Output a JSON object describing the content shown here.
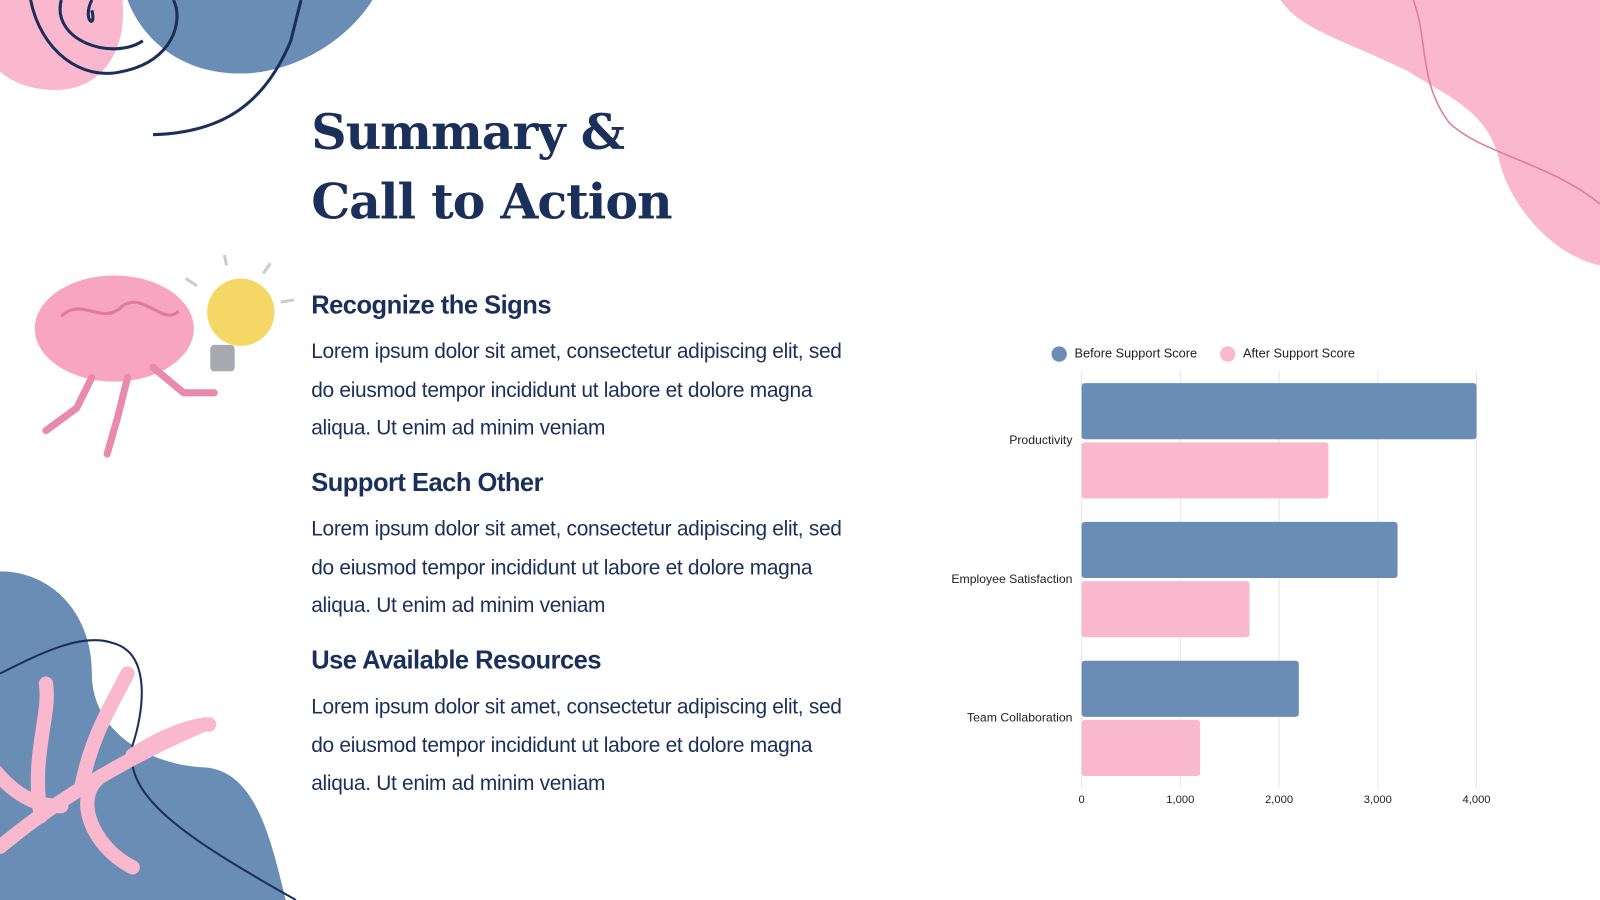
{
  "header": {
    "title": "Summary & Call to Action"
  },
  "sections": [
    {
      "heading": "Recognize the Signs",
      "body": "Lorem ipsum dolor sit amet, consectetur adipiscing elit, sed do eiusmod tempor incididunt ut labore et dolore magna aliqua. Ut enim ad minim veniam"
    },
    {
      "heading": "Support Each Other",
      "body": "Lorem ipsum dolor sit amet, consectetur adipiscing elit, sed do eiusmod tempor incididunt ut labore et dolore magna aliqua. Ut enim ad minim veniam"
    },
    {
      "heading": "Use Available Resources",
      "body": "Lorem ipsum dolor sit amet, consectetur adipiscing elit, sed do eiusmod tempor incididunt ut labore et dolore magna aliqua. Ut enim ad minim veniam"
    }
  ],
  "chart_data": {
    "type": "bar",
    "orientation": "horizontal",
    "categories": [
      "Productivity",
      "Employee Satisfaction",
      "Team Collaboration"
    ],
    "series": [
      {
        "name": "Before Support Score",
        "color": "#6a8db5",
        "values": [
          4000,
          3200,
          2200
        ]
      },
      {
        "name": "After Support Score",
        "color": "#f9b8cd",
        "values": [
          2500,
          1700,
          1200
        ]
      }
    ],
    "xlim": [
      0,
      4000
    ],
    "xticks": [
      0,
      {
        "value": 1000,
        "label": "1,000"
      },
      {
        "value": 2000,
        "label": "2,000"
      },
      {
        "value": 3000,
        "label": "3,000"
      },
      {
        "value": 4000,
        "label": "4,000"
      }
    ],
    "grid": true,
    "legend": "top"
  }
}
